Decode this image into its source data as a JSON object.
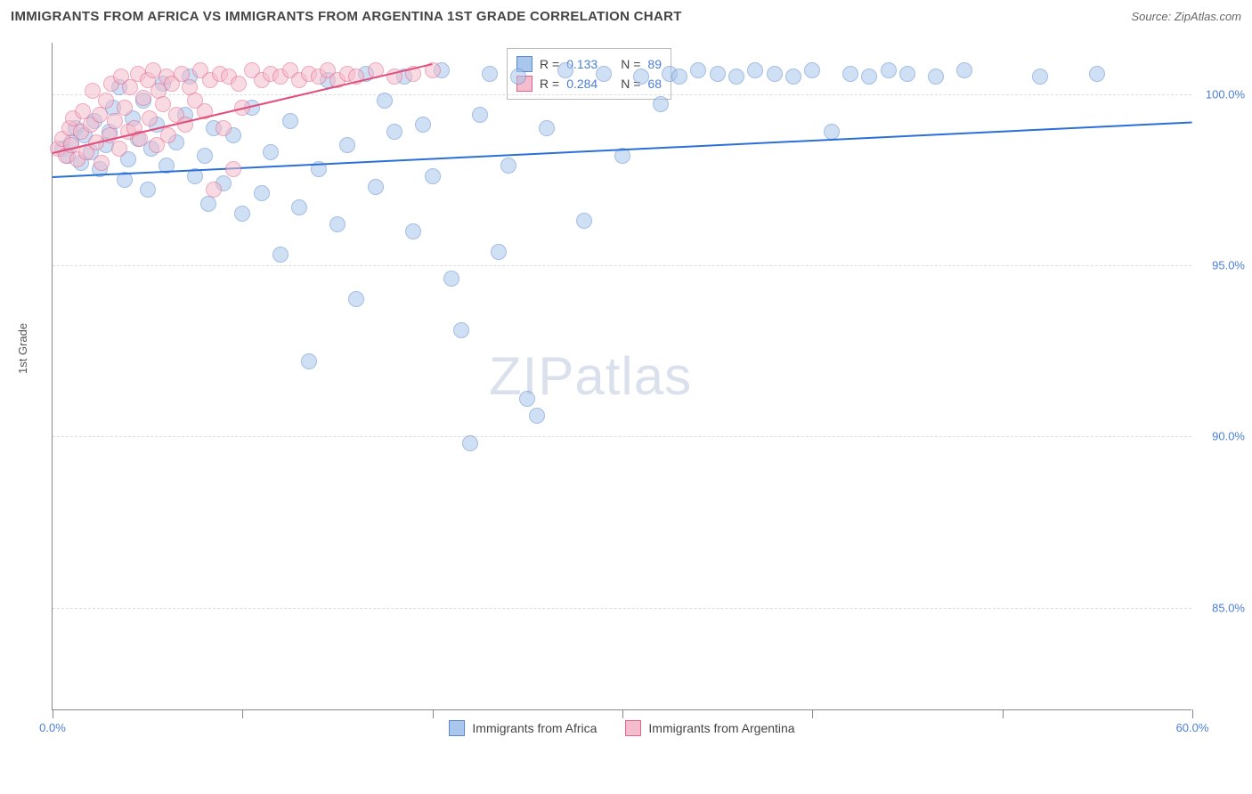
{
  "title": "IMMIGRANTS FROM AFRICA VS IMMIGRANTS FROM ARGENTINA 1ST GRADE CORRELATION CHART",
  "source_label": "Source: ZipAtlas.com",
  "y_axis_label": "1st Grade",
  "watermark": "ZIPatlas",
  "chart": {
    "type": "scatter",
    "xlim": [
      0,
      60
    ],
    "ylim": [
      82,
      101.5
    ],
    "x_ticks": [
      0,
      10,
      20,
      30,
      40,
      50,
      60
    ],
    "x_tick_labels": [
      "0.0%",
      "",
      "",
      "",
      "",
      "",
      "60.0%"
    ],
    "y_ticks": [
      85,
      90,
      95,
      100
    ],
    "y_tick_labels": [
      "85.0%",
      "90.0%",
      "95.0%",
      "100.0%"
    ],
    "grid_color": "#dddddd",
    "background_color": "#ffffff",
    "marker_radius": 9,
    "marker_opacity": 0.55,
    "series": [
      {
        "name": "Immigrants from Africa",
        "fill": "#a9c6ec",
        "stroke": "#5989cf",
        "trend_color": "#2b6fd6",
        "trend_width": 2,
        "R": "0.133",
        "N": "89",
        "trend": {
          "x1": 0,
          "y1": 97.6,
          "x2": 60,
          "y2": 99.2
        },
        "points": [
          [
            0.5,
            98.4
          ],
          [
            0.8,
            98.2
          ],
          [
            1.0,
            98.6
          ],
          [
            1.2,
            99.0
          ],
          [
            1.5,
            98.0
          ],
          [
            1.7,
            98.8
          ],
          [
            2.0,
            98.3
          ],
          [
            2.2,
            99.2
          ],
          [
            2.5,
            97.8
          ],
          [
            2.8,
            98.5
          ],
          [
            3.0,
            98.9
          ],
          [
            3.2,
            99.6
          ],
          [
            3.5,
            100.2
          ],
          [
            3.8,
            97.5
          ],
          [
            4.0,
            98.1
          ],
          [
            4.2,
            99.3
          ],
          [
            4.5,
            98.7
          ],
          [
            4.8,
            99.8
          ],
          [
            5.0,
            97.2
          ],
          [
            5.2,
            98.4
          ],
          [
            5.5,
            99.1
          ],
          [
            5.8,
            100.3
          ],
          [
            6.0,
            97.9
          ],
          [
            6.5,
            98.6
          ],
          [
            7.0,
            99.4
          ],
          [
            7.2,
            100.5
          ],
          [
            7.5,
            97.6
          ],
          [
            8.0,
            98.2
          ],
          [
            8.2,
            96.8
          ],
          [
            8.5,
            99.0
          ],
          [
            9.0,
            97.4
          ],
          [
            9.5,
            98.8
          ],
          [
            10.0,
            96.5
          ],
          [
            10.5,
            99.6
          ],
          [
            11.0,
            97.1
          ],
          [
            11.5,
            98.3
          ],
          [
            12.0,
            95.3
          ],
          [
            12.5,
            99.2
          ],
          [
            13.0,
            96.7
          ],
          [
            13.5,
            92.2
          ],
          [
            14.0,
            97.8
          ],
          [
            14.5,
            100.4
          ],
          [
            15.0,
            96.2
          ],
          [
            15.5,
            98.5
          ],
          [
            16.0,
            94.0
          ],
          [
            16.5,
            100.6
          ],
          [
            17.0,
            97.3
          ],
          [
            17.5,
            99.8
          ],
          [
            18.0,
            98.9
          ],
          [
            18.5,
            100.5
          ],
          [
            19.0,
            96.0
          ],
          [
            19.5,
            99.1
          ],
          [
            20.0,
            97.6
          ],
          [
            20.5,
            100.7
          ],
          [
            21.0,
            94.6
          ],
          [
            21.5,
            93.1
          ],
          [
            22.0,
            89.8
          ],
          [
            22.5,
            99.4
          ],
          [
            23.0,
            100.6
          ],
          [
            23.5,
            95.4
          ],
          [
            24.0,
            97.9
          ],
          [
            24.5,
            100.5
          ],
          [
            25.0,
            91.1
          ],
          [
            25.5,
            90.6
          ],
          [
            26.0,
            99.0
          ],
          [
            27.0,
            100.7
          ],
          [
            28.0,
            96.3
          ],
          [
            29.0,
            100.6
          ],
          [
            30.0,
            98.2
          ],
          [
            31.0,
            100.5
          ],
          [
            32.0,
            99.7
          ],
          [
            32.5,
            100.6
          ],
          [
            33.0,
            100.5
          ],
          [
            34.0,
            100.7
          ],
          [
            35.0,
            100.6
          ],
          [
            36.0,
            100.5
          ],
          [
            37.0,
            100.7
          ],
          [
            38.0,
            100.6
          ],
          [
            39.0,
            100.5
          ],
          [
            40.0,
            100.7
          ],
          [
            41.0,
            98.9
          ],
          [
            42.0,
            100.6
          ],
          [
            43.0,
            100.5
          ],
          [
            44.0,
            100.7
          ],
          [
            45.0,
            100.6
          ],
          [
            46.5,
            100.5
          ],
          [
            48.0,
            100.7
          ],
          [
            52.0,
            100.5
          ],
          [
            55.0,
            100.6
          ]
        ]
      },
      {
        "name": "Immigrants from Argentina",
        "fill": "#f4bccc",
        "stroke": "#e3638c",
        "trend_color": "#e34d7a",
        "trend_width": 2,
        "R": "0.284",
        "N": "68",
        "trend": {
          "x1": 0,
          "y1": 98.3,
          "x2": 20,
          "y2": 100.9
        },
        "points": [
          [
            0.3,
            98.4
          ],
          [
            0.5,
            98.7
          ],
          [
            0.7,
            98.2
          ],
          [
            0.9,
            99.0
          ],
          [
            1.0,
            98.5
          ],
          [
            1.1,
            99.3
          ],
          [
            1.3,
            98.1
          ],
          [
            1.5,
            98.9
          ],
          [
            1.6,
            99.5
          ],
          [
            1.8,
            98.3
          ],
          [
            2.0,
            99.1
          ],
          [
            2.1,
            100.1
          ],
          [
            2.3,
            98.6
          ],
          [
            2.5,
            99.4
          ],
          [
            2.6,
            98.0
          ],
          [
            2.8,
            99.8
          ],
          [
            3.0,
            98.8
          ],
          [
            3.1,
            100.3
          ],
          [
            3.3,
            99.2
          ],
          [
            3.5,
            98.4
          ],
          [
            3.6,
            100.5
          ],
          [
            3.8,
            99.6
          ],
          [
            4.0,
            98.9
          ],
          [
            4.1,
            100.2
          ],
          [
            4.3,
            99.0
          ],
          [
            4.5,
            100.6
          ],
          [
            4.6,
            98.7
          ],
          [
            4.8,
            99.9
          ],
          [
            5.0,
            100.4
          ],
          [
            5.1,
            99.3
          ],
          [
            5.3,
            100.7
          ],
          [
            5.5,
            98.5
          ],
          [
            5.6,
            100.1
          ],
          [
            5.8,
            99.7
          ],
          [
            6.0,
            100.5
          ],
          [
            6.1,
            98.8
          ],
          [
            6.3,
            100.3
          ],
          [
            6.5,
            99.4
          ],
          [
            6.8,
            100.6
          ],
          [
            7.0,
            99.1
          ],
          [
            7.2,
            100.2
          ],
          [
            7.5,
            99.8
          ],
          [
            7.8,
            100.7
          ],
          [
            8.0,
            99.5
          ],
          [
            8.3,
            100.4
          ],
          [
            8.5,
            97.2
          ],
          [
            8.8,
            100.6
          ],
          [
            9.0,
            99.0
          ],
          [
            9.3,
            100.5
          ],
          [
            9.5,
            97.8
          ],
          [
            9.8,
            100.3
          ],
          [
            10.0,
            99.6
          ],
          [
            10.5,
            100.7
          ],
          [
            11.0,
            100.4
          ],
          [
            11.5,
            100.6
          ],
          [
            12.0,
            100.5
          ],
          [
            12.5,
            100.7
          ],
          [
            13.0,
            100.4
          ],
          [
            13.5,
            100.6
          ],
          [
            14.0,
            100.5
          ],
          [
            14.5,
            100.7
          ],
          [
            15.0,
            100.4
          ],
          [
            15.5,
            100.6
          ],
          [
            16.0,
            100.5
          ],
          [
            17.0,
            100.7
          ],
          [
            18.0,
            100.5
          ],
          [
            19.0,
            100.6
          ],
          [
            20.0,
            100.7
          ]
        ]
      }
    ]
  },
  "legend_africa_label": "Immigrants from Africa",
  "legend_argentina_label": "Immigrants from Argentina",
  "stat_R_label": "R =",
  "stat_N_label": "N ="
}
